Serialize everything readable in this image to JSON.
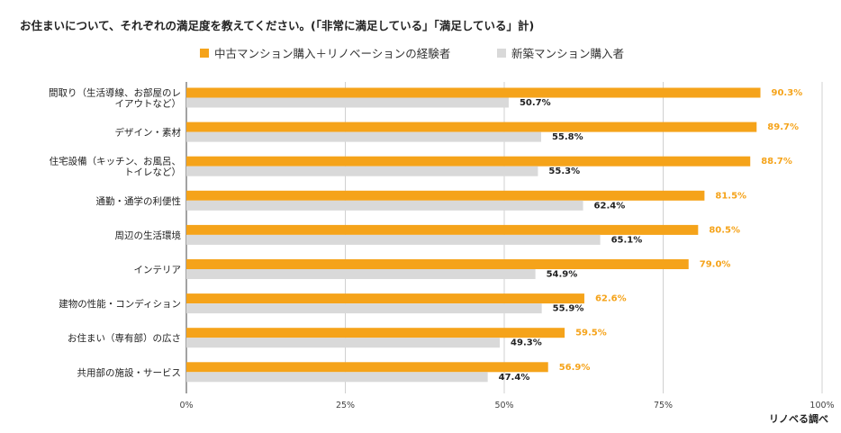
{
  "chart_data": {
    "type": "bar",
    "orientation": "horizontal",
    "title": "お住まいについて、それぞれの満足度を教えてください。(「非常に満足している」「満足している」計)",
    "categories": [
      [
        "間取り（生活導線、お部屋のレ",
        "イアウトなど）"
      ],
      [
        "デザイン・素材"
      ],
      [
        "住宅設備（キッチン、お風呂、",
        "トイレなど）"
      ],
      [
        "通勤・通学の利便性"
      ],
      [
        "周辺の生活環境"
      ],
      [
        "インテリア"
      ],
      [
        "建物の性能・コンディション"
      ],
      [
        "お住まい（専有部）の広さ"
      ],
      [
        "共用部の施設・サービス"
      ]
    ],
    "series": [
      {
        "name": "中古マンション購入＋リノベーションの経験者",
        "color": "#f5a31a",
        "values": [
          90.3,
          89.7,
          88.7,
          81.5,
          80.5,
          79.0,
          62.6,
          59.5,
          56.9
        ],
        "labels": [
          "90.3%",
          "89.7%",
          "88.7%",
          "81.5%",
          "80.5%",
          "79.0%",
          "62.6%",
          "59.5%",
          "56.9%"
        ]
      },
      {
        "name": "新築マンション購入者",
        "color": "#d9d9d9",
        "values": [
          50.7,
          55.8,
          55.3,
          62.4,
          65.1,
          54.9,
          55.9,
          49.3,
          47.4
        ],
        "labels": [
          "50.7%",
          "55.8%",
          "55.3%",
          "62.4%",
          "65.1%",
          "54.9%",
          "55.9%",
          "49.3%",
          "47.4%"
        ]
      }
    ],
    "xlim": [
      0,
      100
    ],
    "xticks": [
      0,
      25,
      50,
      75,
      100
    ],
    "xtick_labels": [
      "0%",
      "25%",
      "50%",
      "75%",
      "100%"
    ],
    "grid": true,
    "legend_position": "top",
    "source": "リノベる調べ"
  }
}
